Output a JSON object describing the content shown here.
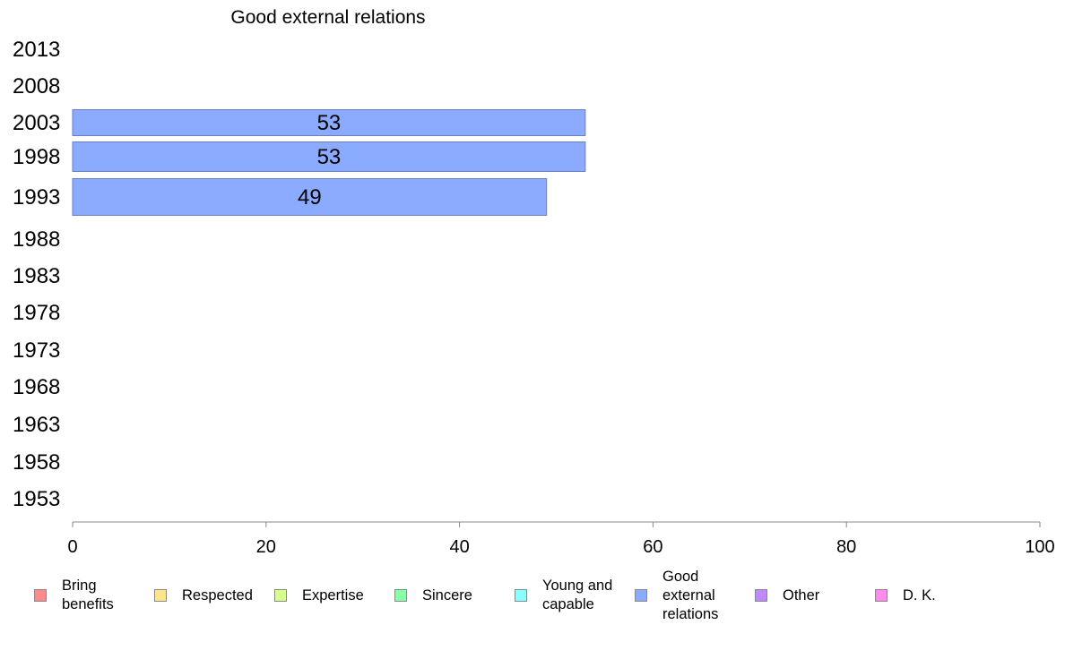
{
  "chart_data": {
    "type": "bar",
    "orientation": "horizontal",
    "title": "Good external relations",
    "categories": [
      "2013",
      "2008",
      "2003",
      "1998",
      "1993",
      "1988",
      "1983",
      "1978",
      "1973",
      "1968",
      "1963",
      "1958",
      "1953"
    ],
    "series": [
      {
        "name": "Good external relations",
        "color": "#8aabff",
        "values": [
          null,
          null,
          53,
          53,
          49,
          null,
          null,
          null,
          null,
          null,
          null,
          null,
          null
        ]
      }
    ],
    "data_labels": [
      "",
      "",
      "53",
      "53",
      "49",
      "",
      "",
      "",
      "",
      "",
      "",
      "",
      ""
    ],
    "xlim": [
      0,
      100
    ],
    "xticks": [
      "0",
      "20",
      "40",
      "60",
      "80",
      "100"
    ],
    "grid": false,
    "legend_position": "bottom"
  },
  "legend": [
    {
      "label": "Bring\nbenefits",
      "color": "#ff8a8a"
    },
    {
      "label": "Respected",
      "color": "#ffe58a"
    },
    {
      "label": "Expertise",
      "color": "#d4ff8a"
    },
    {
      "label": "Sincere",
      "color": "#8affaa"
    },
    {
      "label": "Young and\ncapable",
      "color": "#8affff"
    },
    {
      "label": "Good\nexternal\nrelations",
      "color": "#8aabff"
    },
    {
      "label": "Other",
      "color": "#bf8aff"
    },
    {
      "label": "D. K.",
      "color": "#ff8aee"
    }
  ]
}
